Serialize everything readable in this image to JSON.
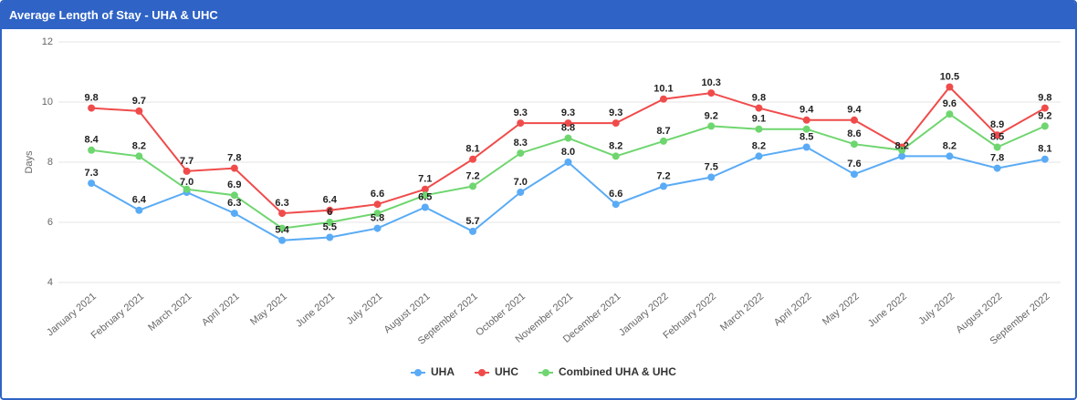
{
  "chart_data": {
    "type": "line",
    "title": "Average Length of Stay - UHA & UHC",
    "y_label": "Days",
    "categories": [
      "January 2021",
      "February 2021",
      "March 2021",
      "April 2021",
      "May 2021",
      "June 2021",
      "July 2021",
      "August 2021",
      "September 2021",
      "October 2021",
      "November 2021",
      "December 2021",
      "January 2022",
      "February 2022",
      "March 2022",
      "April 2022",
      "May 2022",
      "June 2022",
      "July 2022",
      "August 2022",
      "September 2022"
    ],
    "series": [
      {
        "name": "UHA",
        "color": "#5aabf5",
        "values": [
          7.3,
          6.4,
          7.0,
          6.3,
          5.4,
          5.5,
          5.8,
          6.5,
          5.7,
          7.0,
          8.0,
          6.6,
          7.2,
          7.5,
          8.2,
          8.5,
          7.6,
          8.2,
          8.2,
          7.8,
          8.1
        ],
        "value_labels": [
          "7.3",
          "6.4",
          "7.0",
          "6.3",
          "5.4",
          "5.5",
          "5.8",
          "6.5",
          "5.7",
          "7.0",
          "8.0",
          "6.6",
          "7.2",
          "7.5",
          "8.2",
          "8.5",
          "7.6",
          "8.2",
          "8.2",
          "7.8",
          "8.1"
        ]
      },
      {
        "name": "UHC",
        "color": "#f04b4b",
        "values": [
          9.8,
          9.7,
          7.7,
          7.8,
          6.3,
          6.4,
          6.6,
          7.1,
          8.1,
          9.3,
          9.3,
          9.3,
          10.1,
          10.3,
          9.8,
          9.4,
          9.4,
          8.5,
          10.5,
          8.9,
          9.8
        ],
        "value_labels": [
          "9.8",
          "9.7",
          "7.7",
          "7.8",
          "6.3",
          "6.4",
          "6.6",
          "7.1",
          "8.1",
          "9.3",
          "9.3",
          "9.3",
          "10.1",
          "10.3",
          "9.8",
          "9.4",
          "9.4",
          null,
          "10.5",
          "8.9",
          "9.8"
        ]
      },
      {
        "name": "Combined UHA & UHC",
        "color": "#6fd66f",
        "values": [
          8.4,
          8.2,
          7.1,
          6.9,
          5.8,
          6,
          6.3,
          6.9,
          7.2,
          8.3,
          8.8,
          8.2,
          8.7,
          9.2,
          9.1,
          9.1,
          8.6,
          8.4,
          9.6,
          8.5,
          9.2
        ],
        "value_labels": [
          "8.4",
          "8.2",
          null,
          "6.9",
          null,
          "6",
          null,
          null,
          "7.2",
          "8.3",
          "8.8",
          "8.2",
          "8.7",
          "9.2",
          "9.1",
          null,
          "8.6",
          null,
          "9.6",
          "8.5",
          "9.2"
        ]
      }
    ],
    "ylim": [
      4,
      12
    ],
    "yticks": [
      4,
      6,
      8,
      10,
      12
    ],
    "grid": true,
    "legend": "bottom"
  }
}
